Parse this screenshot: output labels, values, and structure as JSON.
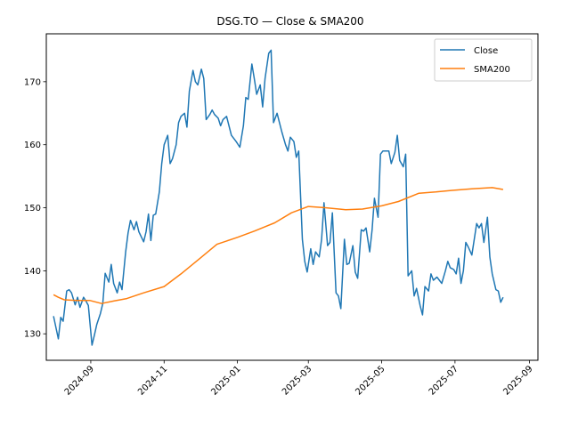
{
  "chart_data": {
    "type": "line",
    "title": "DSG.TO — Close & SMA200",
    "xlabel": "",
    "ylabel": "",
    "xlim": [
      "2024-07-26",
      "2025-09-08"
    ],
    "ylim": [
      125.8,
      177.6
    ],
    "x_ticks": [
      "2024-09",
      "2024-11",
      "2025-01",
      "2025-03",
      "2025-05",
      "2025-07",
      "2025-09"
    ],
    "y_ticks": [
      130,
      140,
      150,
      160,
      170
    ],
    "grid": false,
    "legend_position": "top-right",
    "series": [
      {
        "name": "Close",
        "color": "#1f77b4",
        "points": [
          [
            "2024-08-01",
            132.8
          ],
          [
            "2024-08-05",
            129.2
          ],
          [
            "2024-08-07",
            132.6
          ],
          [
            "2024-08-09",
            132.0
          ],
          [
            "2024-08-12",
            136.8
          ],
          [
            "2024-08-14",
            137.0
          ],
          [
            "2024-08-16",
            136.5
          ],
          [
            "2024-08-19",
            134.6
          ],
          [
            "2024-08-21",
            135.8
          ],
          [
            "2024-08-23",
            134.2
          ],
          [
            "2024-08-26",
            135.8
          ],
          [
            "2024-08-28",
            135.2
          ],
          [
            "2024-08-30",
            134.5
          ],
          [
            "2024-09-02",
            128.2
          ],
          [
            "2024-09-04",
            129.8
          ],
          [
            "2024-09-06",
            131.5
          ],
          [
            "2024-09-09",
            133.2
          ],
          [
            "2024-09-11",
            134.8
          ],
          [
            "2024-09-13",
            139.6
          ],
          [
            "2024-09-16",
            138.2
          ],
          [
            "2024-09-18",
            141.0
          ],
          [
            "2024-09-20",
            138.0
          ],
          [
            "2024-09-23",
            136.5
          ],
          [
            "2024-09-25",
            138.2
          ],
          [
            "2024-09-27",
            137.0
          ],
          [
            "2024-09-30",
            143.0
          ],
          [
            "2024-10-02",
            146.0
          ],
          [
            "2024-10-04",
            148.0
          ],
          [
            "2024-10-07",
            146.5
          ],
          [
            "2024-10-09",
            147.8
          ],
          [
            "2024-10-11",
            146.2
          ],
          [
            "2024-10-15",
            144.6
          ],
          [
            "2024-10-17",
            146.2
          ],
          [
            "2024-10-19",
            149.0
          ],
          [
            "2024-10-21",
            144.8
          ],
          [
            "2024-10-23",
            148.8
          ],
          [
            "2024-10-25",
            149.0
          ],
          [
            "2024-10-28",
            152.5
          ],
          [
            "2024-10-30",
            157.0
          ],
          [
            "2024-11-01",
            160.0
          ],
          [
            "2024-11-04",
            161.5
          ],
          [
            "2024-11-06",
            157.0
          ],
          [
            "2024-11-08",
            157.8
          ],
          [
            "2024-11-11",
            160.0
          ],
          [
            "2024-11-13",
            163.5
          ],
          [
            "2024-11-15",
            164.5
          ],
          [
            "2024-11-18",
            165.0
          ],
          [
            "2024-11-20",
            162.8
          ],
          [
            "2024-11-22",
            168.5
          ],
          [
            "2024-11-25",
            171.8
          ],
          [
            "2024-11-27",
            170.0
          ],
          [
            "2024-11-29",
            169.5
          ],
          [
            "2024-12-02",
            172.0
          ],
          [
            "2024-12-04",
            170.5
          ],
          [
            "2024-12-06",
            164.0
          ],
          [
            "2024-12-09",
            164.8
          ],
          [
            "2024-12-11",
            165.5
          ],
          [
            "2024-12-13",
            164.8
          ],
          [
            "2024-12-16",
            164.2
          ],
          [
            "2024-12-18",
            163.0
          ],
          [
            "2024-12-20",
            164.0
          ],
          [
            "2024-12-23",
            164.5
          ],
          [
            "2024-12-27",
            161.5
          ],
          [
            "2024-12-31",
            160.5
          ],
          [
            "2025-01-03",
            159.6
          ],
          [
            "2025-01-06",
            163.0
          ],
          [
            "2025-01-08",
            167.5
          ],
          [
            "2025-01-10",
            167.2
          ],
          [
            "2025-01-13",
            172.8
          ],
          [
            "2025-01-15",
            170.5
          ],
          [
            "2025-01-17",
            168.0
          ],
          [
            "2025-01-20",
            169.5
          ],
          [
            "2025-01-22",
            166.0
          ],
          [
            "2025-01-24",
            170.5
          ],
          [
            "2025-01-27",
            174.5
          ],
          [
            "2025-01-29",
            175.0
          ],
          [
            "2025-01-31",
            163.5
          ],
          [
            "2025-02-03",
            165.0
          ],
          [
            "2025-02-05",
            163.5
          ],
          [
            "2025-02-07",
            162.0
          ],
          [
            "2025-02-10",
            160.0
          ],
          [
            "2025-02-12",
            159.0
          ],
          [
            "2025-02-14",
            161.2
          ],
          [
            "2025-02-17",
            160.5
          ],
          [
            "2025-02-19",
            158.0
          ],
          [
            "2025-02-21",
            159.0
          ],
          [
            "2025-02-24",
            145.0
          ],
          [
            "2025-02-26",
            141.5
          ],
          [
            "2025-02-28",
            139.8
          ],
          [
            "2025-03-03",
            143.5
          ],
          [
            "2025-03-05",
            141.0
          ],
          [
            "2025-03-07",
            143.0
          ],
          [
            "2025-03-10",
            142.2
          ],
          [
            "2025-03-12",
            145.0
          ],
          [
            "2025-03-14",
            150.8
          ],
          [
            "2025-03-17",
            144.0
          ],
          [
            "2025-03-19",
            144.5
          ],
          [
            "2025-03-21",
            149.2
          ],
          [
            "2025-03-24",
            136.5
          ],
          [
            "2025-03-26",
            136.0
          ],
          [
            "2025-03-28",
            134.0
          ],
          [
            "2025-03-31",
            145.0
          ],
          [
            "2025-04-02",
            141.0
          ],
          [
            "2025-04-04",
            141.2
          ],
          [
            "2025-04-07",
            144.0
          ],
          [
            "2025-04-09",
            139.8
          ],
          [
            "2025-04-11",
            138.8
          ],
          [
            "2025-04-14",
            146.5
          ],
          [
            "2025-04-16",
            146.3
          ],
          [
            "2025-04-18",
            146.8
          ],
          [
            "2025-04-21",
            143.0
          ],
          [
            "2025-04-23",
            146.5
          ],
          [
            "2025-04-25",
            151.5
          ],
          [
            "2025-04-28",
            148.5
          ],
          [
            "2025-04-30",
            158.5
          ],
          [
            "2025-05-02",
            159.0
          ],
          [
            "2025-05-05",
            159.0
          ],
          [
            "2025-05-07",
            159.0
          ],
          [
            "2025-05-09",
            157.0
          ],
          [
            "2025-05-12",
            158.8
          ],
          [
            "2025-05-14",
            161.5
          ],
          [
            "2025-05-16",
            157.5
          ],
          [
            "2025-05-19",
            156.5
          ],
          [
            "2025-05-21",
            158.5
          ],
          [
            "2025-05-23",
            139.2
          ],
          [
            "2025-05-26",
            140.0
          ],
          [
            "2025-05-28",
            136.0
          ],
          [
            "2025-05-30",
            137.2
          ],
          [
            "2025-06-02",
            134.5
          ],
          [
            "2025-06-04",
            133.0
          ],
          [
            "2025-06-06",
            137.5
          ],
          [
            "2025-06-09",
            136.8
          ],
          [
            "2025-06-11",
            139.5
          ],
          [
            "2025-06-13",
            138.5
          ],
          [
            "2025-06-16",
            139.0
          ],
          [
            "2025-06-18",
            138.5
          ],
          [
            "2025-06-20",
            138.0
          ],
          [
            "2025-06-23",
            140.0
          ],
          [
            "2025-06-25",
            141.5
          ],
          [
            "2025-06-27",
            140.5
          ],
          [
            "2025-06-30",
            140.2
          ],
          [
            "2025-07-02",
            139.5
          ],
          [
            "2025-07-04",
            142.0
          ],
          [
            "2025-07-06",
            138.0
          ],
          [
            "2025-07-08",
            140.0
          ],
          [
            "2025-07-10",
            144.5
          ],
          [
            "2025-07-12",
            143.8
          ],
          [
            "2025-07-15",
            142.5
          ],
          [
            "2025-07-17",
            145.0
          ],
          [
            "2025-07-19",
            147.5
          ],
          [
            "2025-07-21",
            146.8
          ],
          [
            "2025-07-23",
            147.5
          ],
          [
            "2025-07-25",
            144.5
          ],
          [
            "2025-07-28",
            148.5
          ],
          [
            "2025-07-30",
            142.2
          ],
          [
            "2025-08-01",
            139.5
          ],
          [
            "2025-08-04",
            137.0
          ],
          [
            "2025-08-06",
            136.8
          ],
          [
            "2025-08-08",
            135.0
          ],
          [
            "2025-08-10",
            135.8
          ]
        ]
      },
      {
        "name": "SMA200",
        "color": "#ff7f0e",
        "points": [
          [
            "2024-08-01",
            136.2
          ],
          [
            "2024-08-05",
            135.8
          ],
          [
            "2024-08-10",
            135.4
          ],
          [
            "2024-08-20",
            135.3
          ],
          [
            "2024-08-31",
            135.3
          ],
          [
            "2024-09-10",
            134.8
          ],
          [
            "2024-09-20",
            135.2
          ],
          [
            "2024-10-01",
            135.6
          ],
          [
            "2024-10-15",
            136.5
          ],
          [
            "2024-11-01",
            137.5
          ],
          [
            "2024-11-15",
            139.5
          ],
          [
            "2024-12-01",
            142.0
          ],
          [
            "2024-12-15",
            144.2
          ],
          [
            "2025-01-01",
            145.3
          ],
          [
            "2025-01-15",
            146.3
          ],
          [
            "2025-02-01",
            147.6
          ],
          [
            "2025-02-15",
            149.2
          ],
          [
            "2025-03-01",
            150.2
          ],
          [
            "2025-03-15",
            150.0
          ],
          [
            "2025-04-01",
            149.7
          ],
          [
            "2025-04-15",
            149.8
          ],
          [
            "2025-05-01",
            150.3
          ],
          [
            "2025-05-15",
            151.0
          ],
          [
            "2025-06-01",
            152.3
          ],
          [
            "2025-06-15",
            152.5
          ],
          [
            "2025-07-01",
            152.8
          ],
          [
            "2025-07-15",
            153.0
          ],
          [
            "2025-08-01",
            153.2
          ],
          [
            "2025-08-10",
            152.9
          ]
        ]
      }
    ]
  }
}
